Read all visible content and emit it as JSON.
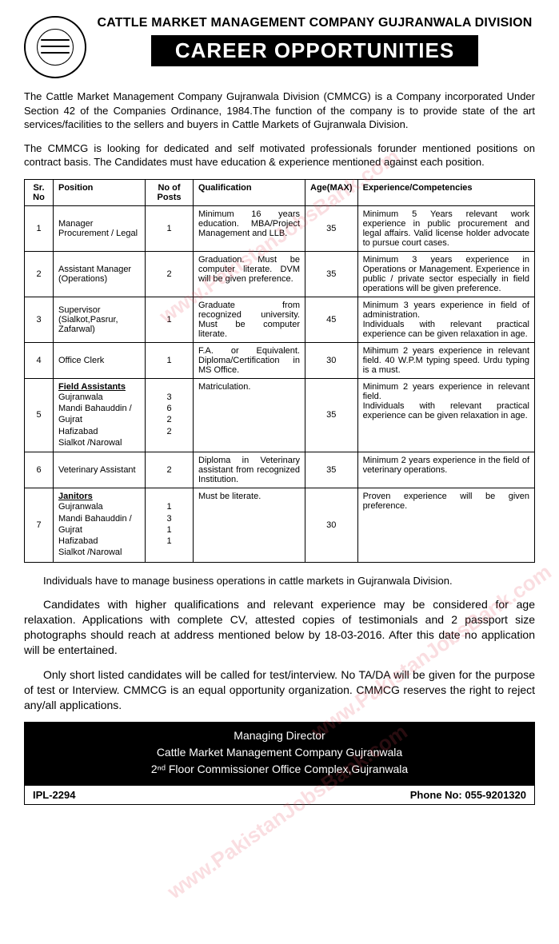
{
  "org_title": "CATTLE MARKET MANAGEMENT COMPANY GUJRANWALA DIVISION",
  "banner": "CAREER OPPORTUNITIES",
  "intro1": "The Cattle Market Management Company Gujranwala Division (CMMCG) is a Company incorporated Under Section 42 of the Companies Ordinance, 1984.The function of the company is to provide state of the art services/facilities to the sellers and buyers in Cattle Markets of Gujranwala Division.",
  "intro2": "The CMMCG is looking for dedicated and self motivated professionals forunder mentioned positions on contract basis. The Candidates must have education & experience mentioned against each position.",
  "table": {
    "headers": {
      "sr": "Sr. No",
      "position": "Position",
      "posts": "No of Posts",
      "qualification": "Qualification",
      "age": "Age(MAX)",
      "experience": "Experience/Competencies"
    },
    "rows": [
      {
        "sr": "1",
        "position": "Manager Procurement / Legal",
        "posts": "1",
        "qualification": "Minimum 16 years education. MBA/Project Management and LLB.",
        "age": "35",
        "experience": "Minimum 5 Years relevant work experience in public procurement and legal affairs. Valid license holder advocate to pursue court cases."
      },
      {
        "sr": "2",
        "position": "Assistant Manager (Operations)",
        "posts": "2",
        "qualification": "Graduation. Must be computer literate. DVM will be given preference.",
        "age": "35",
        "experience": "Minimum 3 years experience in Operations or Management. Experience in public / private sector especially in field operations will be given preference."
      },
      {
        "sr": "3",
        "position": "Supervisor (Sialkot,Pasrur, Zafarwal)",
        "posts": "1",
        "qualification": "Graduate from recognized university. Must be computer literate.",
        "age": "45",
        "experience": "Minimum 3 years experience in field of administration.\nIndividuals with relevant practical experience can be given relaxation in age."
      },
      {
        "sr": "4",
        "position": "Office Clerk",
        "posts": "1",
        "qualification": "F.A. or Equivalent. Diploma/Certification in MS Office.",
        "age": "30",
        "experience": "Mihimum 2 years experience in relevant field. 40 W.P.M typing speed. Urdu typing is a must."
      },
      {
        "sr": "5",
        "position_title": "Field Assistants",
        "sub_positions": [
          "Gujranwala",
          "Mandi Bahauddin / Gujrat",
          "Hafizabad",
          "Sialkot /Narowal"
        ],
        "sub_posts": [
          "3",
          "6",
          "2",
          "2"
        ],
        "qualification": "Matriculation.",
        "age": "35",
        "experience": "Minimum 2 years experience in relevant field.\nIndividuals with relevant practical experience can be given relaxation in age."
      },
      {
        "sr": "6",
        "position": "Veterinary Assistant",
        "posts": "2",
        "qualification": "Diploma in Veterinary assistant from recognized Institution.",
        "age": "35",
        "experience": "Minimum 2 years experience in the field of veterinary operations."
      },
      {
        "sr": "7",
        "position_title": "Janitors",
        "sub_positions": [
          "Gujranwala",
          "Mandi Bahauddin / Gujrat",
          "Hafizabad",
          "Sialkot /Narowal"
        ],
        "sub_posts": [
          "1",
          "3",
          "1",
          "1"
        ],
        "qualification": "Must be literate.",
        "age": "30",
        "experience": "Proven experience will be given preference."
      }
    ]
  },
  "note1": "Individuals have to manage business operations in cattle markets in Gujranwala Division.",
  "note2": "Candidates with higher qualifications and relevant experience may be considered for age relaxation. Applications with complete CV, attested copies of testimonials and 2 passport size photographs should reach at address mentioned below by 18-03-2016. After this date no application will be entertained.",
  "note3": "Only short listed candidates will be called for test/interview. No TA/DA will be given for the purpose of test or Interview. CMMCG is an equal opportunity organization. CMMCG reserves the right to reject any/all applications.",
  "footer": {
    "line1": "Managing Director",
    "line2": "Cattle Market Management Company Gujranwala",
    "line3": "2ⁿᵈ Floor Commissioner Office Complex,Gujranwala",
    "ipl": "IPL-2294",
    "phone": "Phone No: 055-9201320"
  },
  "watermark": "www.PakistanJobsBank.com"
}
